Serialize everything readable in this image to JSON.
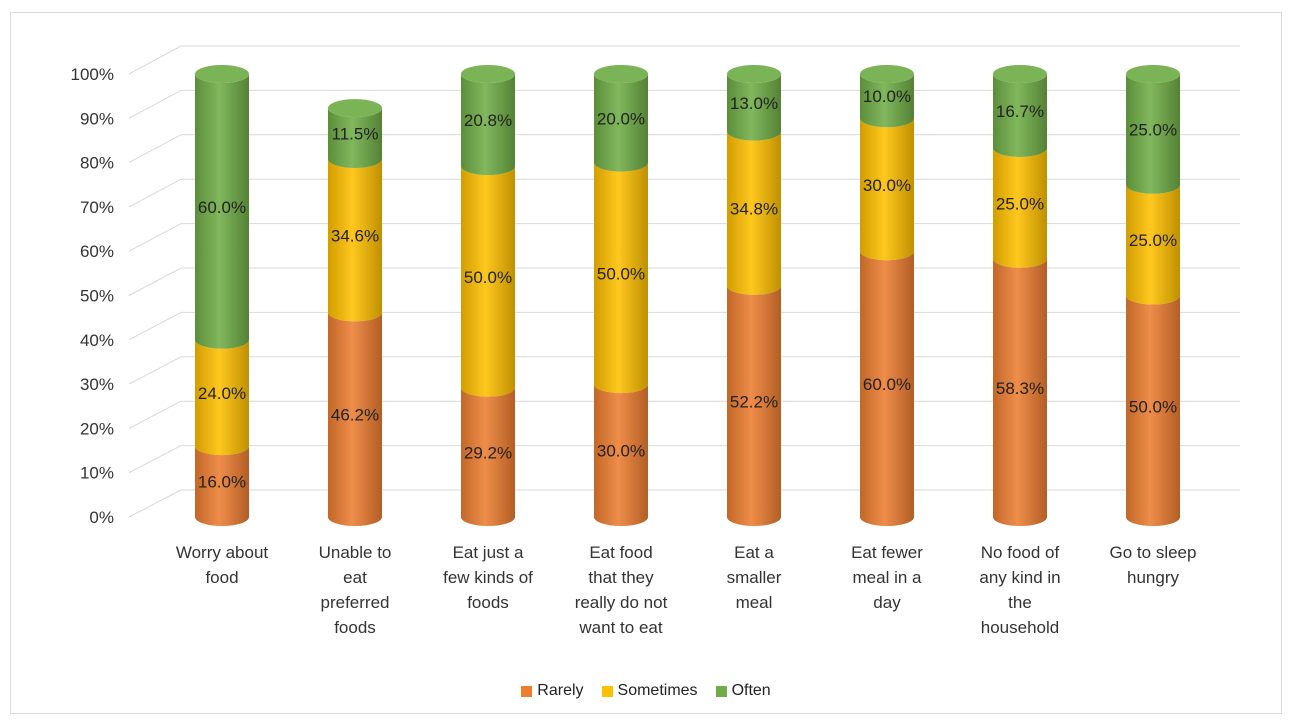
{
  "chart_data": {
    "type": "bar",
    "stacked": true,
    "style": "3d-cylinder",
    "title": "",
    "xlabel": "",
    "ylabel": "",
    "ylim": [
      0,
      100
    ],
    "y_ticks": [
      "0%",
      "10%",
      "20%",
      "30%",
      "40%",
      "50%",
      "60%",
      "70%",
      "80%",
      "90%",
      "100%"
    ],
    "grid": true,
    "legend_position": "bottom",
    "categories": [
      [
        "Worry about",
        "food"
      ],
      [
        "Unable to",
        "eat",
        "preferred",
        "foods"
      ],
      [
        "Eat just a",
        "few kinds of",
        "foods"
      ],
      [
        "Eat food",
        "that they",
        "really do not",
        "want to eat"
      ],
      [
        "Eat a",
        "smaller",
        "meal"
      ],
      [
        "Eat fewer",
        "meal in a",
        "day"
      ],
      [
        "No food of",
        "any kind in",
        "the",
        "household"
      ],
      [
        "Go to sleep",
        "hungry"
      ]
    ],
    "series": [
      {
        "name": "Rarely",
        "color": "#ED7D31",
        "values": [
          16.0,
          46.2,
          29.2,
          30.0,
          52.2,
          60.0,
          58.3,
          50.0
        ],
        "labels": [
          "16.0%",
          "46.2%",
          "29.2%",
          "30.0%",
          "52.2%",
          "60.0%",
          "58.3%",
          "50.0%"
        ]
      },
      {
        "name": "Sometimes",
        "color": "#FFC000",
        "values": [
          24.0,
          34.6,
          50.0,
          50.0,
          34.8,
          30.0,
          25.0,
          25.0
        ],
        "labels": [
          "24.0%",
          "34.6%",
          "50.0%",
          "50.0%",
          "34.8%",
          "30.0%",
          "25.0%",
          "25.0%"
        ]
      },
      {
        "name": "Often",
        "color": "#70AD47",
        "values": [
          60.0,
          11.5,
          20.8,
          20.0,
          13.0,
          10.0,
          16.7,
          25.0
        ],
        "labels": [
          "60.0%",
          "11.5%",
          "20.8%",
          "20.0%",
          "13.0%",
          "10.0%",
          "16.7%",
          "25.0%"
        ]
      }
    ]
  }
}
